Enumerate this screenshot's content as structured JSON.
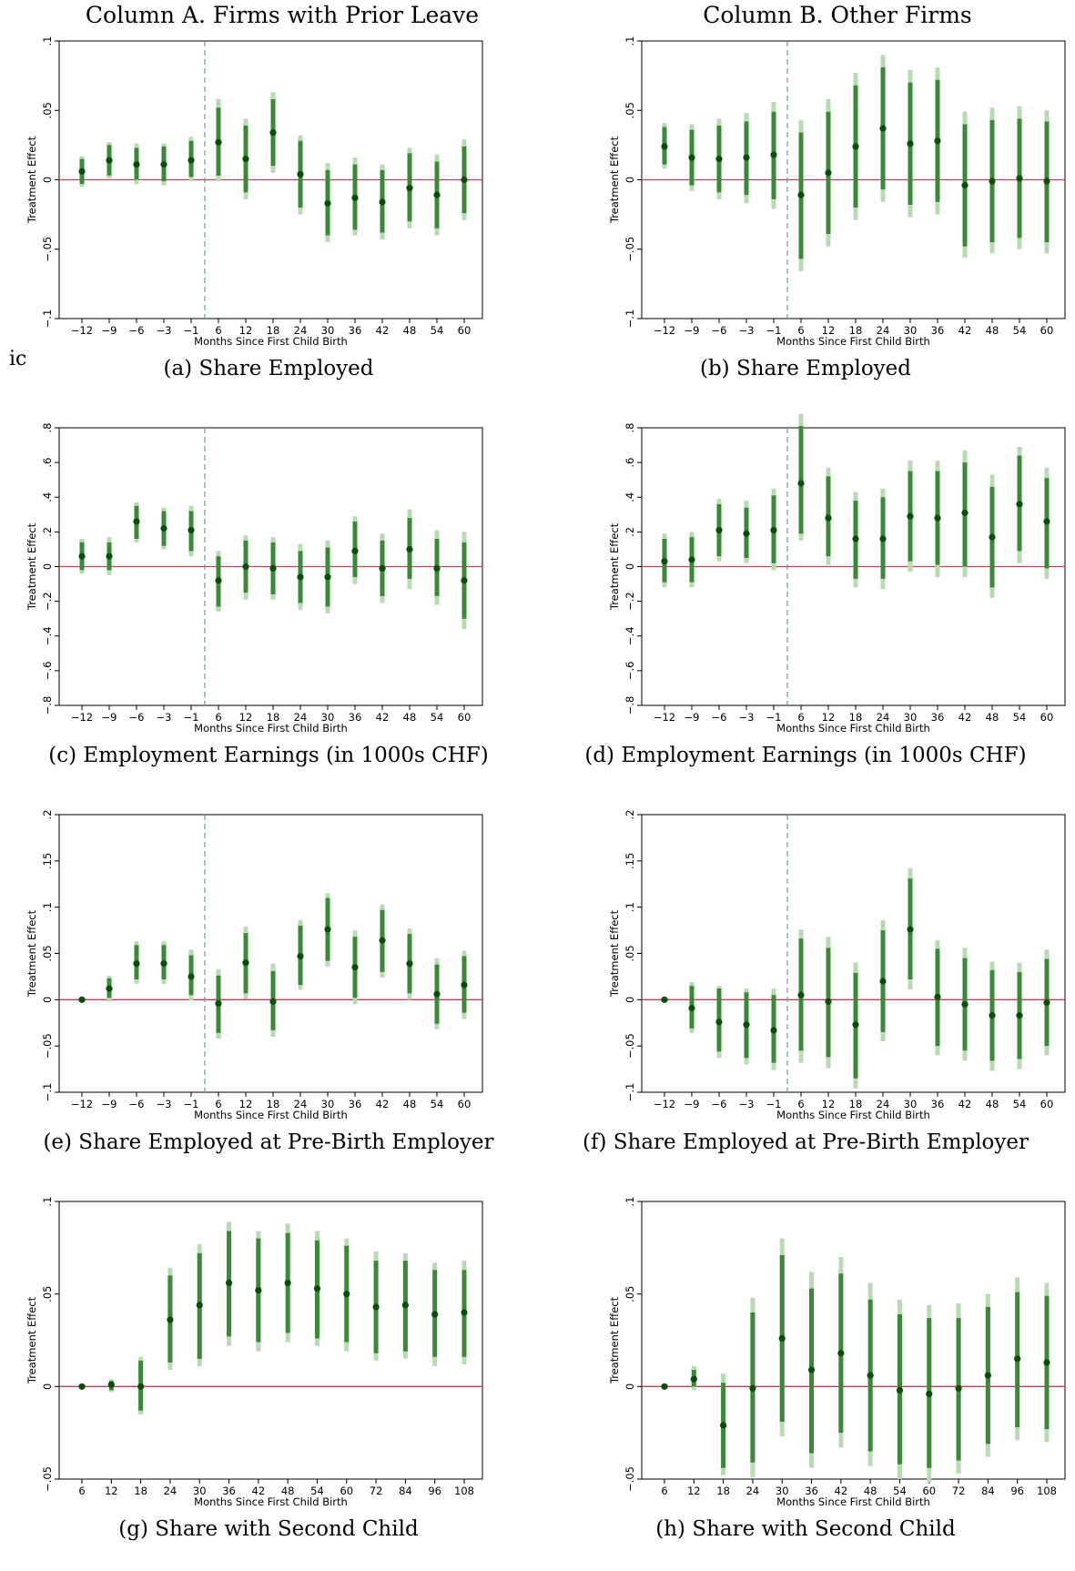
{
  "column_titles": [
    "Column A. Firms with Prior Leave",
    "Column B. Other Firms"
  ],
  "stray_text": "ic",
  "colors": {
    "ci95": "#b9dbb4",
    "ci90": "#3a8a35",
    "point": "#0a4d0a",
    "zero_line": "#c0405a",
    "ref_line": "#6a9a9a",
    "axis": "#000000"
  },
  "chart_data": [
    {
      "panel": "a",
      "type": "scatter",
      "caption": "(a) Share Employed",
      "xlabel": "Months Since First Child Birth",
      "ylabel": "Treatment Effect",
      "categories": [
        "−12",
        "−9",
        "−6",
        "−3",
        "−1",
        "6",
        "12",
        "18",
        "24",
        "30",
        "36",
        "42",
        "48",
        "54",
        "60"
      ],
      "yticks": [
        -0.1,
        -0.05,
        0,
        0.05,
        0.1
      ],
      "ytick_labels": [
        "−.1",
        "−.05",
        "0",
        ".05",
        ".1"
      ],
      "ylim": [
        -0.1,
        0.1
      ],
      "ref_line_after": "−1",
      "values": [
        0.006,
        0.014,
        0.011,
        0.011,
        0.014,
        0.027,
        0.015,
        0.034,
        0.004,
        -0.017,
        -0.013,
        -0.016,
        -0.006,
        -0.011,
        0.0
      ],
      "ci90_low": [
        -0.003,
        0.003,
        0.0,
        -0.001,
        0.002,
        0.003,
        -0.009,
        0.01,
        -0.02,
        -0.04,
        -0.036,
        -0.038,
        -0.03,
        -0.035,
        -0.024
      ],
      "ci90_high": [
        0.015,
        0.025,
        0.023,
        0.024,
        0.028,
        0.052,
        0.039,
        0.058,
        0.028,
        0.007,
        0.011,
        0.007,
        0.019,
        0.013,
        0.024
      ],
      "ci95_low": [
        -0.005,
        0.001,
        -0.003,
        -0.004,
        -0.001,
        -0.001,
        -0.014,
        0.005,
        -0.025,
        -0.045,
        -0.04,
        -0.043,
        -0.035,
        -0.04,
        -0.029
      ],
      "ci95_high": [
        0.017,
        0.027,
        0.026,
        0.026,
        0.031,
        0.058,
        0.044,
        0.063,
        0.032,
        0.012,
        0.016,
        0.011,
        0.023,
        0.018,
        0.029
      ]
    },
    {
      "panel": "b",
      "type": "scatter",
      "caption": "(b) Share Employed",
      "xlabel": "Months Since First Child Birth",
      "ylabel": "Treatment Effect",
      "categories": [
        "−12",
        "−9",
        "−6",
        "−3",
        "−1",
        "6",
        "12",
        "18",
        "24",
        "30",
        "36",
        "42",
        "48",
        "54",
        "60"
      ],
      "yticks": [
        -0.1,
        -0.05,
        0,
        0.05,
        0.1
      ],
      "ytick_labels": [
        "−.1",
        "−.05",
        "0",
        ".05",
        ".1"
      ],
      "ylim": [
        -0.1,
        0.1
      ],
      "ref_line_after": "−1",
      "values": [
        0.024,
        0.016,
        0.015,
        0.016,
        0.018,
        -0.011,
        0.005,
        0.024,
        0.037,
        0.026,
        0.028,
        -0.004,
        -0.001,
        0.001,
        -0.001
      ],
      "ci90_low": [
        0.011,
        -0.004,
        -0.009,
        -0.011,
        -0.014,
        -0.057,
        -0.039,
        -0.02,
        -0.007,
        -0.018,
        -0.016,
        -0.048,
        -0.045,
        -0.042,
        -0.045
      ],
      "ci90_high": [
        0.038,
        0.036,
        0.039,
        0.042,
        0.049,
        0.034,
        0.049,
        0.068,
        0.081,
        0.07,
        0.072,
        0.04,
        0.043,
        0.044,
        0.042
      ],
      "ci95_low": [
        0.008,
        -0.008,
        -0.014,
        -0.017,
        -0.021,
        -0.066,
        -0.048,
        -0.029,
        -0.016,
        -0.027,
        -0.025,
        -0.056,
        -0.053,
        -0.05,
        -0.053
      ],
      "ci95_high": [
        0.041,
        0.04,
        0.044,
        0.048,
        0.056,
        0.043,
        0.058,
        0.077,
        0.09,
        0.079,
        0.081,
        0.049,
        0.052,
        0.053,
        0.05
      ]
    },
    {
      "panel": "c",
      "type": "scatter",
      "caption": "(c) Employment Earnings (in 1000s CHF)",
      "xlabel": "Months Since First Child Birth",
      "ylabel": "Treatment Effect",
      "categories": [
        "−12",
        "−9",
        "−6",
        "−3",
        "−1",
        "6",
        "12",
        "18",
        "24",
        "30",
        "36",
        "42",
        "48",
        "54",
        "60"
      ],
      "yticks": [
        -0.8,
        -0.6,
        -0.4,
        -0.2,
        0,
        0.2,
        0.4,
        0.6,
        0.8
      ],
      "ytick_labels": [
        "−.8",
        "−.6",
        "−.4",
        "−.2",
        "0",
        ".2",
        ".4",
        ".6",
        ".8"
      ],
      "ylim": [
        -0.8,
        0.8
      ],
      "ref_line_after": "−1",
      "values": [
        0.06,
        0.06,
        0.26,
        0.22,
        0.21,
        -0.08,
        0.0,
        -0.01,
        -0.06,
        -0.06,
        0.09,
        -0.01,
        0.1,
        -0.01,
        -0.08
      ],
      "ci90_low": [
        -0.02,
        -0.02,
        0.16,
        0.12,
        0.09,
        -0.23,
        -0.15,
        -0.16,
        -0.21,
        -0.23,
        -0.06,
        -0.17,
        -0.07,
        -0.17,
        -0.3
      ],
      "ci90_high": [
        0.14,
        0.14,
        0.35,
        0.32,
        0.32,
        0.06,
        0.15,
        0.14,
        0.09,
        0.11,
        0.26,
        0.15,
        0.28,
        0.16,
        0.14
      ],
      "ci95_low": [
        -0.04,
        -0.05,
        0.14,
        0.1,
        0.06,
        -0.26,
        -0.19,
        -0.19,
        -0.25,
        -0.27,
        -0.1,
        -0.21,
        -0.13,
        -0.22,
        -0.36
      ],
      "ci95_high": [
        0.16,
        0.17,
        0.37,
        0.34,
        0.35,
        0.09,
        0.18,
        0.17,
        0.13,
        0.15,
        0.29,
        0.19,
        0.33,
        0.21,
        0.2
      ]
    },
    {
      "panel": "d",
      "type": "scatter",
      "caption": "(d) Employment Earnings (in 1000s CHF)",
      "xlabel": "Months Since First Child Birth",
      "ylabel": "Treatment Effect",
      "categories": [
        "−12",
        "−9",
        "−6",
        "−3",
        "−1",
        "6",
        "12",
        "18",
        "24",
        "30",
        "36",
        "42",
        "48",
        "54",
        "60"
      ],
      "yticks": [
        -0.8,
        -0.6,
        -0.4,
        -0.2,
        0,
        0.2,
        0.4,
        0.6,
        0.8
      ],
      "ytick_labels": [
        "−.8",
        "−.6",
        "−.4",
        "−.2",
        "0",
        ".2",
        ".4",
        ".6",
        ".8"
      ],
      "ylim": [
        -0.8,
        0.8
      ],
      "ref_line_after": "−1",
      "values": [
        0.03,
        0.04,
        0.21,
        0.19,
        0.21,
        0.48,
        0.28,
        0.16,
        0.16,
        0.29,
        0.28,
        0.31,
        0.17,
        0.36,
        0.26
      ],
      "ci90_low": [
        -0.09,
        -0.09,
        0.06,
        0.05,
        0.02,
        0.19,
        0.06,
        -0.07,
        -0.07,
        0.03,
        0.01,
        0.0,
        -0.12,
        0.09,
        -0.01
      ],
      "ci90_high": [
        0.16,
        0.17,
        0.36,
        0.34,
        0.41,
        0.81,
        0.52,
        0.38,
        0.4,
        0.55,
        0.55,
        0.6,
        0.46,
        0.64,
        0.51
      ],
      "ci95_low": [
        -0.12,
        -0.12,
        0.03,
        0.02,
        -0.02,
        0.15,
        0.01,
        -0.12,
        -0.13,
        -0.03,
        -0.06,
        -0.06,
        -0.18,
        0.02,
        -0.07
      ],
      "ci95_high": [
        0.19,
        0.2,
        0.39,
        0.38,
        0.45,
        0.88,
        0.57,
        0.43,
        0.45,
        0.61,
        0.61,
        0.67,
        0.53,
        0.69,
        0.57
      ]
    },
    {
      "panel": "e",
      "type": "scatter",
      "caption": "(e) Share Employed at Pre-Birth Employer",
      "xlabel": "Months Since First Child Birth",
      "ylabel": "Treatment Effect",
      "categories": [
        "−12",
        "−9",
        "−6",
        "−3",
        "−1",
        "6",
        "12",
        "18",
        "24",
        "30",
        "36",
        "42",
        "48",
        "54",
        "60"
      ],
      "yticks": [
        -0.1,
        -0.05,
        0,
        0.05,
        0.1,
        0.15,
        0.2
      ],
      "ytick_labels": [
        "−.1",
        "−.05",
        "0",
        ".05",
        ".1",
        ".15",
        ".2"
      ],
      "ylim": [
        -0.1,
        0.2
      ],
      "ref_line_after": "−1",
      "values": [
        0.0,
        0.012,
        0.039,
        0.039,
        0.025,
        -0.004,
        0.04,
        -0.002,
        0.047,
        0.076,
        0.035,
        0.064,
        0.039,
        0.006,
        0.016
      ],
      "ci90_low": [
        0.0,
        0.002,
        0.022,
        0.022,
        0.005,
        -0.036,
        0.007,
        -0.033,
        0.016,
        0.042,
        0.002,
        0.03,
        0.007,
        -0.026,
        -0.014
      ],
      "ci90_high": [
        0.0,
        0.023,
        0.059,
        0.059,
        0.048,
        0.026,
        0.072,
        0.031,
        0.08,
        0.11,
        0.068,
        0.097,
        0.071,
        0.038,
        0.047
      ],
      "ci95_low": [
        0.0,
        -0.002,
        0.017,
        0.017,
        -0.001,
        -0.042,
        0.001,
        -0.04,
        0.011,
        0.036,
        -0.005,
        0.024,
        0.0,
        -0.032,
        -0.021
      ],
      "ci95_high": [
        0.0,
        0.026,
        0.063,
        0.063,
        0.054,
        0.033,
        0.079,
        0.039,
        0.086,
        0.115,
        0.075,
        0.103,
        0.077,
        0.045,
        0.053
      ]
    },
    {
      "panel": "f",
      "type": "scatter",
      "caption": "(f) Share Employed at Pre-Birth Employer",
      "xlabel": "Months Since First Child Birth",
      "ylabel": "Treatment Effect",
      "categories": [
        "−12",
        "−9",
        "−6",
        "−3",
        "−1",
        "6",
        "12",
        "18",
        "24",
        "30",
        "36",
        "42",
        "48",
        "54",
        "60"
      ],
      "yticks": [
        -0.1,
        -0.05,
        0,
        0.05,
        0.1,
        0.15,
        0.2
      ],
      "ytick_labels": [
        "−.1",
        "−.05",
        "0",
        ".05",
        ".1",
        ".15",
        ".2"
      ],
      "ylim": [
        -0.1,
        0.2
      ],
      "ref_line_after": "−1",
      "values": [
        0.0,
        -0.009,
        -0.024,
        -0.027,
        -0.033,
        0.005,
        -0.002,
        -0.027,
        0.02,
        0.076,
        0.003,
        -0.005,
        -0.017,
        -0.017,
        -0.003
      ],
      "ci90_low": [
        0.0,
        -0.031,
        -0.056,
        -0.063,
        -0.068,
        -0.055,
        -0.062,
        -0.085,
        -0.035,
        0.022,
        -0.05,
        -0.055,
        -0.066,
        -0.064,
        -0.05
      ],
      "ci90_high": [
        0.0,
        0.015,
        0.012,
        0.008,
        0.005,
        0.066,
        0.056,
        0.029,
        0.075,
        0.131,
        0.055,
        0.045,
        0.032,
        0.03,
        0.044
      ],
      "ci95_low": [
        0.0,
        -0.036,
        -0.063,
        -0.07,
        -0.076,
        -0.068,
        -0.074,
        -0.096,
        -0.045,
        0.011,
        -0.06,
        -0.066,
        -0.077,
        -0.075,
        -0.06
      ],
      "ci95_high": [
        0.0,
        0.019,
        0.015,
        0.012,
        0.012,
        0.076,
        0.068,
        0.04,
        0.086,
        0.142,
        0.064,
        0.056,
        0.041,
        0.04,
        0.054
      ]
    },
    {
      "panel": "g",
      "type": "scatter",
      "caption": "(g) Share with Second Child",
      "xlabel": "Months Since First Child Birth",
      "ylabel": "Treatment Effect",
      "categories": [
        "6",
        "12",
        "18",
        "24",
        "30",
        "36",
        "42",
        "48",
        "54",
        "60",
        "72",
        "84",
        "96",
        "108"
      ],
      "yticks": [
        -0.05,
        0,
        0.05,
        0.1
      ],
      "ytick_labels": [
        "−.05",
        "0",
        ".05",
        ".1"
      ],
      "ylim": [
        -0.05,
        0.1
      ],
      "ref_line_after": null,
      "values": [
        0.0,
        0.001,
        0.0,
        0.036,
        0.044,
        0.056,
        0.052,
        0.056,
        0.053,
        0.05,
        0.043,
        0.044,
        0.039,
        0.04
      ],
      "ci90_low": [
        0.0,
        -0.002,
        -0.013,
        0.013,
        0.015,
        0.027,
        0.024,
        0.029,
        0.026,
        0.024,
        0.018,
        0.019,
        0.016,
        0.016
      ],
      "ci90_high": [
        0.0,
        0.003,
        0.014,
        0.06,
        0.072,
        0.084,
        0.08,
        0.083,
        0.079,
        0.076,
        0.068,
        0.068,
        0.063,
        0.063
      ],
      "ci95_low": [
        0.0,
        -0.003,
        -0.015,
        0.009,
        0.011,
        0.022,
        0.019,
        0.024,
        0.022,
        0.019,
        0.014,
        0.015,
        0.011,
        0.012
      ],
      "ci95_high": [
        0.0,
        0.004,
        0.016,
        0.064,
        0.077,
        0.089,
        0.084,
        0.088,
        0.084,
        0.08,
        0.073,
        0.072,
        0.067,
        0.068
      ]
    },
    {
      "panel": "h",
      "type": "scatter",
      "caption": "(h) Share with Second Child",
      "xlabel": "Months Since First Child Birth",
      "ylabel": "Treatment Effect",
      "categories": [
        "6",
        "12",
        "18",
        "24",
        "30",
        "36",
        "42",
        "48",
        "54",
        "60",
        "72",
        "84",
        "96",
        "108"
      ],
      "yticks": [
        -0.05,
        0,
        0.05,
        0.1
      ],
      "ytick_labels": [
        "−.05",
        "0",
        ".05",
        ".1"
      ],
      "ylim": [
        -0.05,
        0.1
      ],
      "ref_line_after": null,
      "values": [
        0.0,
        0.004,
        -0.021,
        -0.001,
        0.026,
        0.009,
        0.018,
        0.006,
        -0.002,
        -0.004,
        -0.001,
        0.006,
        0.015,
        0.013
      ],
      "ci90_low": [
        0.0,
        0.0,
        -0.044,
        -0.041,
        -0.019,
        -0.036,
        -0.025,
        -0.035,
        -0.042,
        -0.044,
        -0.04,
        -0.031,
        -0.022,
        -0.023
      ],
      "ci90_high": [
        0.0,
        0.009,
        0.002,
        0.04,
        0.071,
        0.053,
        0.061,
        0.047,
        0.039,
        0.037,
        0.037,
        0.043,
        0.051,
        0.049
      ],
      "ci95_low": [
        0.0,
        -0.002,
        -0.048,
        -0.049,
        -0.027,
        -0.044,
        -0.033,
        -0.043,
        -0.05,
        -0.052,
        -0.047,
        -0.038,
        -0.029,
        -0.03
      ],
      "ci95_high": [
        0.0,
        0.011,
        0.007,
        0.048,
        0.08,
        0.062,
        0.07,
        0.056,
        0.047,
        0.044,
        0.045,
        0.05,
        0.059,
        0.056
      ]
    }
  ]
}
